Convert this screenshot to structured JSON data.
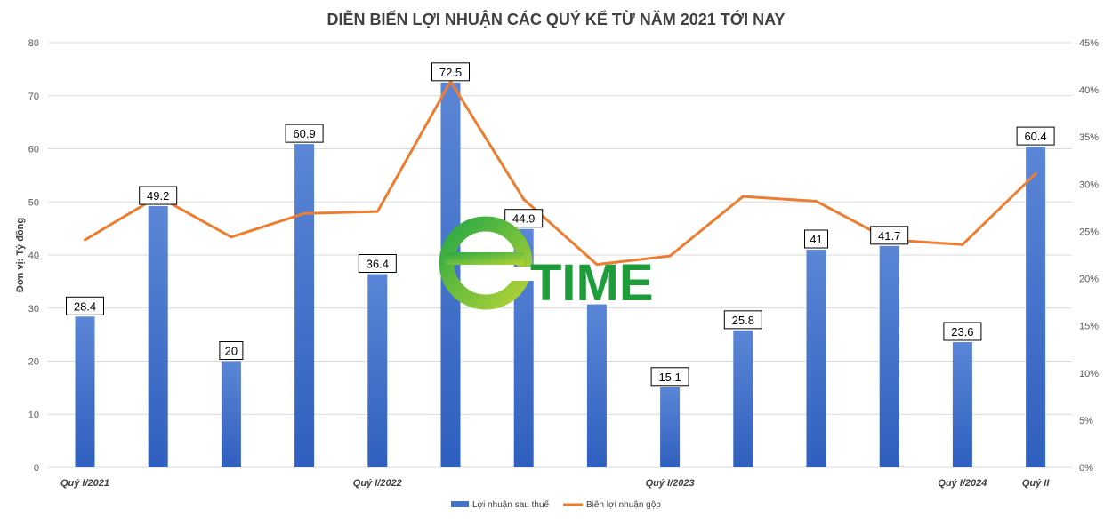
{
  "chart_data": {
    "type": "bar",
    "title": "DIỄN BIẾN LỢI NHUẬN CÁC QUÝ KỂ TỪ NĂM 2021 TỚI NAY",
    "ylabel": "Đơn vị: Tỷ đồng",
    "ylim": [
      0,
      80
    ],
    "y_ticks": [
      "0",
      "10",
      "20",
      "30",
      "40",
      "50",
      "60",
      "70",
      "80"
    ],
    "y2lim": [
      0,
      45
    ],
    "y2_ticks": [
      "0%",
      "5%",
      "10%",
      "15%",
      "20%",
      "25%",
      "30%",
      "35%",
      "40%",
      "45%"
    ],
    "x_tick_labels": [
      {
        "index": 0,
        "label": "Quý I/2021"
      },
      {
        "index": 4,
        "label": "Quý I/2022"
      },
      {
        "index": 8,
        "label": "Quý I/2023"
      },
      {
        "index": 12,
        "label": "Quý I/2024"
      },
      {
        "index": 13,
        "label": "Quý II"
      }
    ],
    "series": [
      {
        "name": "Lợi nhuận sau thuế",
        "type": "bar",
        "axis": "left",
        "color": "#4472c4",
        "values": [
          28.4,
          49.2,
          20,
          60.9,
          36.4,
          72.5,
          44.9,
          30.7,
          15.1,
          25.8,
          41,
          41.7,
          23.6,
          60.4
        ],
        "labels": [
          "28.4",
          "49.2",
          "20",
          "60.9",
          "36.4",
          "72.5",
          "44.9",
          "",
          "15.1",
          "25.8",
          "41",
          "41.7",
          "23.6",
          "60.4"
        ]
      },
      {
        "name": "Biên lợi nhuận gộp",
        "type": "line",
        "axis": "right",
        "unit": "%",
        "color": "#ed7d31",
        "values": [
          24.1,
          28.7,
          24.4,
          26.9,
          27.1,
          40.9,
          28.4,
          21.5,
          22.4,
          28.7,
          28.2,
          24.1,
          23.6,
          31.1
        ]
      }
    ],
    "legend": "bottom",
    "grid": "horizontal"
  },
  "watermark": {
    "letter": "e",
    "text": "TIME"
  }
}
